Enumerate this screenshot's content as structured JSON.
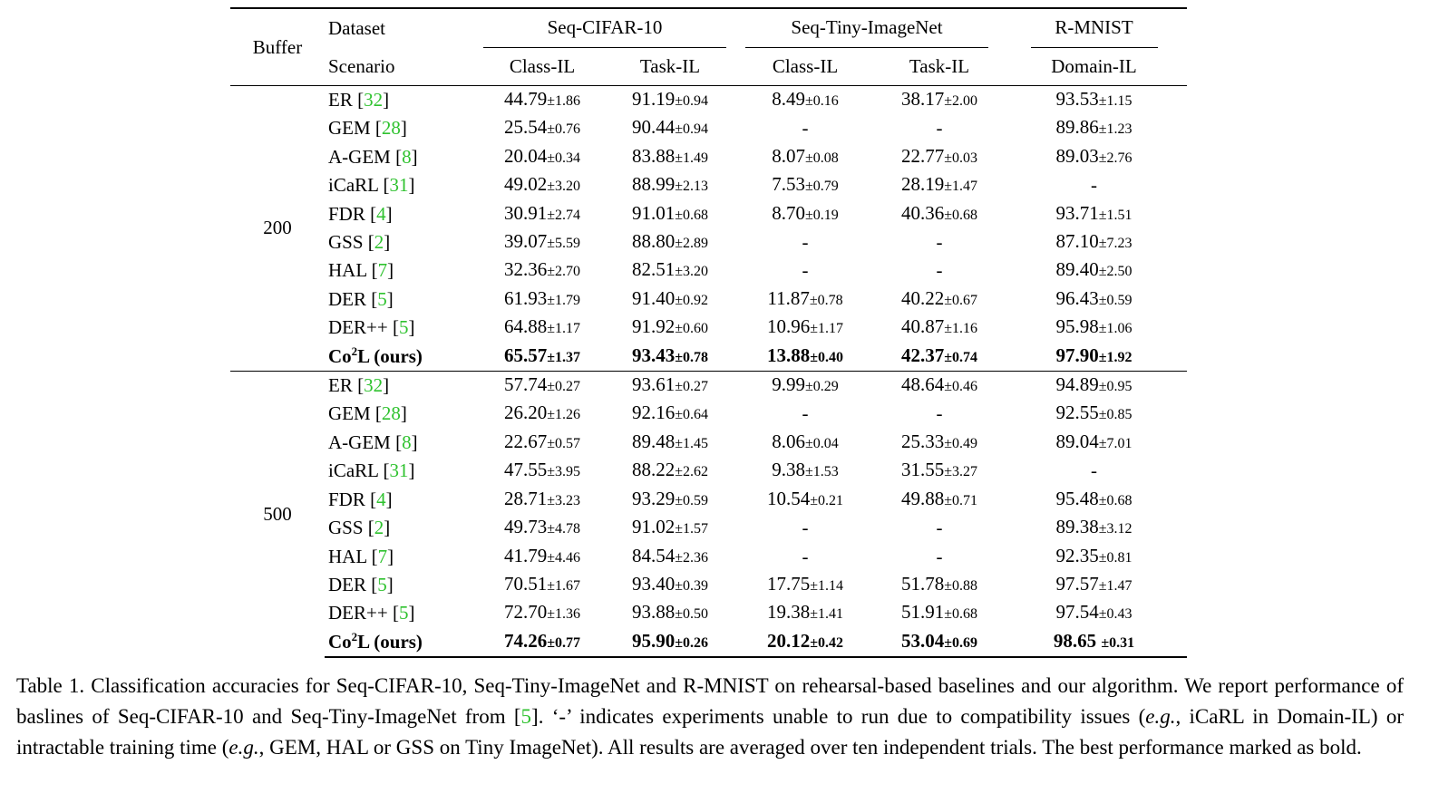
{
  "header": {
    "buffer": "Buffer",
    "dataset": "Dataset",
    "scenario": "Scenario",
    "groups": [
      "Seq-CIFAR-10",
      "Seq-Tiny-ImageNet",
      "R-MNIST"
    ],
    "scenarios": [
      "Class-IL",
      "Task-IL",
      "Class-IL",
      "Task-IL",
      "Domain-IL"
    ]
  },
  "blocks": [
    {
      "buffer": "200",
      "rows": [
        {
          "name": "ER",
          "ref": "32",
          "cells": [
            [
              "44.79",
              "±1.86"
            ],
            [
              "91.19",
              "±0.94"
            ],
            [
              "8.49",
              "±0.16"
            ],
            [
              "38.17",
              "±2.00"
            ],
            [
              "93.53",
              "±1.15"
            ]
          ]
        },
        {
          "name": "GEM",
          "ref": "28",
          "cells": [
            [
              "25.54",
              "±0.76"
            ],
            [
              "90.44",
              "±0.94"
            ],
            [
              "-",
              ""
            ],
            [
              "-",
              ""
            ],
            [
              "89.86",
              "±1.23"
            ]
          ]
        },
        {
          "name": "A-GEM",
          "ref": "8",
          "cells": [
            [
              "20.04",
              "±0.34"
            ],
            [
              "83.88",
              "±1.49"
            ],
            [
              "8.07",
              "±0.08"
            ],
            [
              "22.77",
              "±0.03"
            ],
            [
              "89.03",
              "±2.76"
            ]
          ]
        },
        {
          "name": "iCaRL",
          "ref": "31",
          "cells": [
            [
              "49.02",
              "±3.20"
            ],
            [
              "88.99",
              "±2.13"
            ],
            [
              "7.53",
              "±0.79"
            ],
            [
              "28.19",
              "±1.47"
            ],
            [
              "-",
              ""
            ]
          ]
        },
        {
          "name": "FDR",
          "ref": "4",
          "cells": [
            [
              "30.91",
              "±2.74"
            ],
            [
              "91.01",
              "±0.68"
            ],
            [
              "8.70",
              "±0.19"
            ],
            [
              "40.36",
              "±0.68"
            ],
            [
              "93.71",
              "±1.51"
            ]
          ]
        },
        {
          "name": "GSS",
          "ref": "2",
          "cells": [
            [
              "39.07",
              "±5.59"
            ],
            [
              "88.80",
              "±2.89"
            ],
            [
              "-",
              ""
            ],
            [
              "-",
              ""
            ],
            [
              "87.10",
              "±7.23"
            ]
          ]
        },
        {
          "name": "HAL",
          "ref": "7",
          "cells": [
            [
              "32.36",
              "±2.70"
            ],
            [
              "82.51",
              "±3.20"
            ],
            [
              "-",
              ""
            ],
            [
              "-",
              ""
            ],
            [
              "89.40",
              "±2.50"
            ]
          ]
        },
        {
          "name": "DER",
          "ref": "5",
          "cells": [
            [
              "61.93",
              "±1.79"
            ],
            [
              "91.40",
              "±0.92"
            ],
            [
              "11.87",
              "±0.78"
            ],
            [
              "40.22",
              "±0.67"
            ],
            [
              "96.43",
              "±0.59"
            ]
          ]
        },
        {
          "name": "DER++",
          "ref": "5",
          "cells": [
            [
              "64.88",
              "±1.17"
            ],
            [
              "91.92",
              "±0.60"
            ],
            [
              "10.96",
              "±1.17"
            ],
            [
              "40.87",
              "±1.16"
            ],
            [
              "95.98",
              "±1.06"
            ]
          ]
        },
        {
          "name": "Co",
          "sup": "2",
          "suffix": "L (ours)",
          "bold": true,
          "cells": [
            [
              "65.57",
              "±1.37"
            ],
            [
              "93.43",
              "±0.78"
            ],
            [
              "13.88",
              "±0.40"
            ],
            [
              "42.37",
              "±0.74"
            ],
            [
              "97.90",
              "±1.92"
            ]
          ]
        }
      ]
    },
    {
      "buffer": "500",
      "rows": [
        {
          "name": "ER",
          "ref": "32",
          "cells": [
            [
              "57.74",
              "±0.27"
            ],
            [
              "93.61",
              "±0.27"
            ],
            [
              "9.99",
              "±0.29"
            ],
            [
              "48.64",
              "±0.46"
            ],
            [
              "94.89",
              "±0.95"
            ]
          ]
        },
        {
          "name": "GEM",
          "ref": "28",
          "cells": [
            [
              "26.20",
              "±1.26"
            ],
            [
              "92.16",
              "±0.64"
            ],
            [
              "-",
              ""
            ],
            [
              "-",
              ""
            ],
            [
              "92.55",
              "±0.85"
            ]
          ]
        },
        {
          "name": "A-GEM",
          "ref": "8",
          "cells": [
            [
              "22.67",
              "±0.57"
            ],
            [
              "89.48",
              "±1.45"
            ],
            [
              "8.06",
              "±0.04"
            ],
            [
              "25.33",
              "±0.49"
            ],
            [
              "89.04",
              "±7.01"
            ]
          ]
        },
        {
          "name": "iCaRL",
          "ref": "31",
          "cells": [
            [
              "47.55",
              "±3.95"
            ],
            [
              "88.22",
              "±2.62"
            ],
            [
              "9.38",
              "±1.53"
            ],
            [
              "31.55",
              "±3.27"
            ],
            [
              "-",
              ""
            ]
          ]
        },
        {
          "name": "FDR",
          "ref": "4",
          "cells": [
            [
              "28.71",
              "±3.23"
            ],
            [
              "93.29",
              "±0.59"
            ],
            [
              "10.54",
              "±0.21"
            ],
            [
              "49.88",
              "±0.71"
            ],
            [
              "95.48",
              "±0.68"
            ]
          ]
        },
        {
          "name": "GSS",
          "ref": "2",
          "cells": [
            [
              "49.73",
              "±4.78"
            ],
            [
              "91.02",
              "±1.57"
            ],
            [
              "-",
              ""
            ],
            [
              "-",
              ""
            ],
            [
              "89.38",
              "±3.12"
            ]
          ]
        },
        {
          "name": "HAL",
          "ref": "7",
          "cells": [
            [
              "41.79",
              "±4.46"
            ],
            [
              "84.54",
              "±2.36"
            ],
            [
              "-",
              ""
            ],
            [
              "-",
              ""
            ],
            [
              "92.35",
              "±0.81"
            ]
          ]
        },
        {
          "name": "DER",
          "ref": "5",
          "cells": [
            [
              "70.51",
              "±1.67"
            ],
            [
              "93.40",
              "±0.39"
            ],
            [
              "17.75",
              "±1.14"
            ],
            [
              "51.78",
              "±0.88"
            ],
            [
              "97.57",
              "±1.47"
            ]
          ]
        },
        {
          "name": "DER++",
          "ref": "5",
          "cells": [
            [
              "72.70",
              "±1.36"
            ],
            [
              "93.88",
              "±0.50"
            ],
            [
              "19.38",
              "±1.41"
            ],
            [
              "51.91",
              "±0.68"
            ],
            [
              "97.54",
              "±0.43"
            ]
          ]
        },
        {
          "name": "Co",
          "sup": "2",
          "suffix": "L (ours)",
          "bold": true,
          "cells": [
            [
              "74.26",
              "±0.77"
            ],
            [
              "95.90",
              "±0.26"
            ],
            [
              "20.12",
              "±0.42"
            ],
            [
              "53.04",
              "±0.69"
            ],
            [
              "98.65 ",
              "±0.31"
            ]
          ]
        }
      ]
    }
  ],
  "caption": {
    "p1": "Table 1. Classification accuracies for Seq-CIFAR-10, Seq-Tiny-ImageNet and R-MNIST on rehearsal-based baselines and our algorithm. We report performance of baslines of Seq-CIFAR-10 and Seq-Tiny-ImageNet from [",
    "ref": "5",
    "p2": "].  ‘-’ indicates experiments unable to run due to compatibility issues (",
    "eg1": "e.g.",
    "p3": ", iCaRL in Domain-IL) or intractable training time (",
    "eg2": "e.g.",
    "p4": ", GEM, HAL or GSS on Tiny ImageNet). All results are averaged over ten independent trials. The best performance marked as bold."
  }
}
